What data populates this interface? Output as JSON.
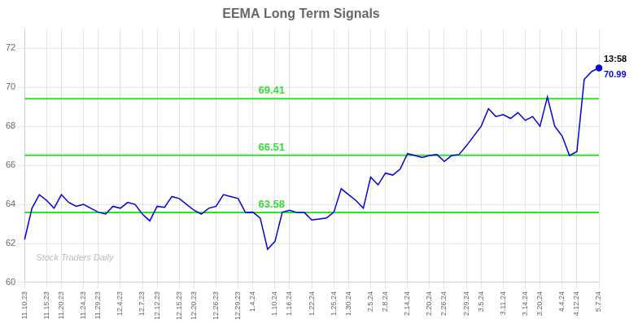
{
  "chart_data": {
    "type": "line",
    "title": "EEMA Long Term Signals",
    "categories": [
      "11.10.23",
      null,
      null,
      "11.15.23",
      null,
      "11.20.23",
      null,
      null,
      "11.24.23",
      null,
      "11.29.23",
      null,
      null,
      "12.4.23",
      null,
      null,
      "12.7.23",
      null,
      "12.12.23",
      null,
      null,
      "12.15.23",
      null,
      "12.20.23",
      null,
      null,
      "12.26.23",
      null,
      null,
      "12.29.23",
      null,
      "1.4.24",
      null,
      null,
      "1.10.24",
      null,
      "1.16.24",
      null,
      null,
      "1.22.24",
      null,
      null,
      "1.25.24",
      null,
      "1.30.24",
      null,
      null,
      "2.5.24",
      null,
      "2.8.24",
      null,
      null,
      "2.14.24",
      null,
      null,
      "2.20.24",
      null,
      "2.26.24",
      null,
      null,
      "2.29.24",
      null,
      "3.5.24",
      null,
      null,
      "3.11.24",
      null,
      null,
      "3.14.24",
      null,
      "3.20.24",
      null,
      null,
      "4.4.24",
      null,
      "4.12.24",
      null,
      null,
      "5.7.24"
    ],
    "values": [
      62.2,
      63.8,
      64.5,
      64.2,
      63.8,
      64.5,
      64.1,
      63.9,
      64.0,
      63.8,
      63.6,
      63.5,
      63.9,
      63.8,
      64.1,
      64.0,
      63.5,
      63.15,
      63.9,
      63.85,
      64.4,
      64.3,
      64.0,
      63.7,
      63.5,
      63.8,
      63.9,
      64.5,
      64.4,
      64.3,
      63.58,
      63.6,
      63.3,
      61.7,
      62.1,
      63.6,
      63.7,
      63.58,
      63.58,
      63.2,
      63.25,
      63.3,
      63.6,
      64.8,
      64.5,
      64.2,
      63.8,
      65.4,
      65.0,
      65.6,
      65.5,
      65.8,
      66.6,
      66.5,
      66.4,
      66.5,
      66.55,
      66.2,
      66.5,
      66.55,
      67.0,
      67.5,
      68.0,
      68.9,
      68.5,
      68.6,
      68.4,
      68.7,
      68.3,
      68.5,
      68.0,
      69.5,
      68.0,
      67.5,
      66.5,
      66.7,
      70.4,
      70.8,
      70.99
    ],
    "color": "#0000dd",
    "hlines": [
      {
        "value": 63.58,
        "label": "63.58",
        "color": "#33dd33"
      },
      {
        "value": 66.51,
        "label": "66.51",
        "color": "#33dd33"
      },
      {
        "value": 69.41,
        "label": "69.41",
        "color": "#33dd33"
      }
    ],
    "last_point_labels": [
      "13:58",
      "70.99"
    ],
    "watermark": {
      "text": "Stock Traders Daily",
      "color": "#bbbbbb"
    },
    "ylim": [
      60,
      73
    ],
    "yticks": [
      60,
      62,
      64,
      66,
      68,
      70,
      72
    ],
    "grid": true
  }
}
